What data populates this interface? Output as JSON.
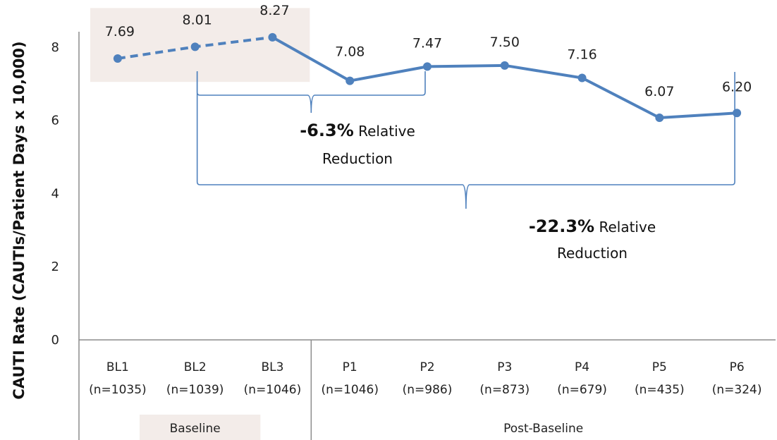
{
  "chart_data": {
    "type": "line",
    "ylabel": "CAUTI Rate (CAUTIs/Patient Days x 10,000)",
    "ylim": [
      0,
      9
    ],
    "yticks": [
      0,
      2,
      4,
      6,
      8
    ],
    "categories": [
      {
        "name": "BL1",
        "n": "(n=1035)"
      },
      {
        "name": "BL2",
        "n": "(n=1039)"
      },
      {
        "name": "BL3",
        "n": "(n=1046)"
      },
      {
        "name": "P1",
        "n": "(n=1046)"
      },
      {
        "name": "P2",
        "n": "(n=986)"
      },
      {
        "name": "P3",
        "n": "(n=873)"
      },
      {
        "name": "P4",
        "n": "(n=679)"
      },
      {
        "name": "P5",
        "n": "(n=435)"
      },
      {
        "name": "P6",
        "n": "(n=324)"
      }
    ],
    "values": [
      7.69,
      8.01,
      8.27,
      7.08,
      7.47,
      7.5,
      7.16,
      6.07,
      6.2
    ],
    "value_labels": [
      "7.69",
      "8.01",
      "8.27",
      "7.08",
      "7.47",
      "7.50",
      "7.16",
      "6.07",
      "6.20"
    ],
    "groups": [
      {
        "label": "Baseline",
        "from": 0,
        "to": 2
      },
      {
        "label": "Post-Baseline",
        "from": 3,
        "to": 8
      }
    ],
    "baseline_segment_style": "dashed",
    "annotations": [
      {
        "bold": "-6.3%",
        "rest": "Relative",
        "line2": "Reduction",
        "from": 1,
        "to": 4
      },
      {
        "bold": "-22.3%",
        "rest": "Relative",
        "line2": "Reduction",
        "from": 1,
        "to": 8
      }
    ],
    "colors": {
      "line": "#4f81bd",
      "bracket": "#4f81bd",
      "baseline_shade": "#f3ece9",
      "axis": "#8c8c8c"
    }
  }
}
